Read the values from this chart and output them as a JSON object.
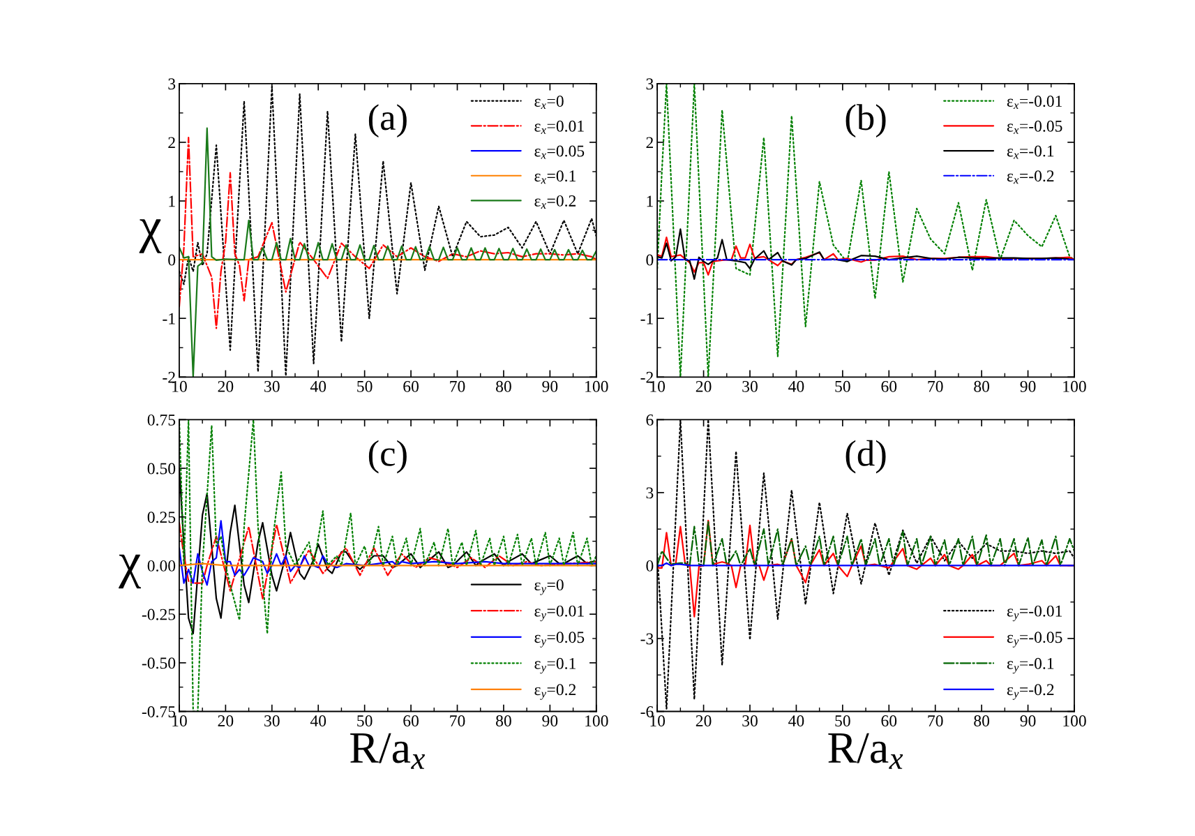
{
  "chart_data": [
    {
      "type": "line",
      "title": "(a)",
      "ylabel": "χ",
      "legend": "top right",
      "tick_labels": "xy",
      "xlim": [
        10,
        100
      ],
      "xticks": [
        10,
        {
          "value": 15,
          "label": null
        },
        20,
        {
          "value": 25,
          "label": null
        },
        30,
        {
          "value": 35,
          "label": null
        },
        40,
        {
          "value": 45,
          "label": null
        },
        50,
        {
          "value": 55,
          "label": null
        },
        60,
        {
          "value": 65,
          "label": null
        },
        70,
        {
          "value": 75,
          "label": null
        },
        80,
        {
          "value": 85,
          "label": null
        },
        90,
        {
          "value": 95,
          "label": null
        },
        100
      ],
      "ylim": [
        -2,
        3
      ],
      "yticks": [
        -2,
        {
          "value": -1.5,
          "label": null
        },
        -1,
        {
          "value": -0.5,
          "label": null
        },
        0,
        {
          "value": 0.5,
          "label": null
        },
        1,
        {
          "value": 1.5,
          "label": null
        },
        2,
        {
          "value": 2.5,
          "label": null
        },
        3
      ],
      "series": [
        {
          "name": "ε$_{x}$=0",
          "color": "#000000",
          "line_style": "dotted",
          "x": [
            10,
            11,
            12,
            13,
            14,
            15,
            16,
            18,
            21,
            24,
            27,
            30,
            33,
            36,
            39,
            42,
            45,
            48,
            51,
            54,
            57,
            60,
            63,
            66,
            69,
            72,
            75,
            78,
            81,
            84,
            87,
            90,
            93,
            96,
            99,
            100
          ],
          "values": [
            -0.2,
            -0.42,
            0.05,
            -0.2,
            0.29,
            -0.1,
            0.1,
            1.95,
            -1.54,
            2.7,
            -1.91,
            2.95,
            -1.98,
            2.82,
            -1.77,
            2.53,
            -1.4,
            2.14,
            -1.0,
            1.68,
            -0.58,
            1.31,
            -0.18,
            0.91,
            0.05,
            0.65,
            0.39,
            0.42,
            0.55,
            0.2,
            0.65,
            0.1,
            0.67,
            0.1,
            0.7,
            0.4
          ]
        },
        {
          "name": "ε$_{x}$=0.01",
          "color": "#ff0000",
          "line_style": "dashdot",
          "x": [
            10,
            11,
            12,
            13,
            15,
            17,
            18,
            19,
            20,
            21,
            22,
            23,
            24,
            25,
            27,
            30,
            33,
            36,
            39,
            42,
            45,
            48,
            51,
            54,
            57,
            60,
            63,
            66,
            69,
            72,
            75,
            78,
            81,
            84,
            87,
            90,
            93,
            96,
            99,
            100
          ],
          "values": [
            -0.8,
            0.2,
            2.08,
            0.05,
            0.1,
            -0.3,
            -1.17,
            -0.2,
            0.3,
            1.48,
            0.1,
            -0.1,
            -0.7,
            0.0,
            0.05,
            0.63,
            -0.55,
            0.3,
            0.0,
            -0.32,
            0.28,
            0.05,
            -0.15,
            0.25,
            0.05,
            0.2,
            0.05,
            -0.03,
            0.1,
            0.05,
            0.15,
            0.1,
            0.12,
            0.05,
            0.1,
            0.1,
            0.08,
            0.1,
            0.05,
            0.0
          ]
        },
        {
          "name": "ε$_{x}$=0.05",
          "color": "#0000ff",
          "line_style": "solid"
        },
        {
          "name": "ε$_{x}$=0.1",
          "color": "#ff8000",
          "line_style": "solid",
          "x": [
            10,
            100
          ],
          "values": [
            0.0,
            0.0
          ]
        },
        {
          "name": "ε$_{x}$=0.2",
          "color": "#1a7a1a",
          "line_style": "solid",
          "x": [
            10,
            11,
            12,
            13,
            14,
            15,
            16,
            17,
            18,
            20,
            23,
            24,
            25,
            26,
            27,
            28,
            29,
            30,
            31,
            32,
            33,
            34,
            35,
            36,
            37,
            38,
            39,
            40,
            41,
            42,
            43,
            44,
            45,
            46,
            47,
            48,
            49,
            50,
            51,
            52,
            53,
            54,
            55,
            56,
            57,
            58,
            59,
            60,
            61,
            62,
            63,
            64,
            65,
            66,
            67,
            68,
            69,
            70,
            71,
            72,
            73,
            74,
            75,
            76,
            77,
            78,
            79,
            80,
            81,
            82,
            83,
            84,
            85,
            86,
            87,
            88,
            89,
            90,
            91,
            92,
            93,
            94,
            95,
            96,
            97,
            98,
            99,
            100
          ],
          "values": [
            0.21,
            0.03,
            0.05,
            -2.0,
            -0.11,
            -0.05,
            2.24,
            0.05,
            -0.01,
            0.01,
            0.0,
            0.0,
            0.67,
            0.0,
            0.0,
            0.2,
            0.0,
            0.0,
            0.29,
            0.0,
            0.0,
            0.36,
            0.0,
            0.0,
            0.27,
            0.0,
            0.0,
            0.29,
            0.0,
            0.0,
            0.27,
            0.0,
            0.0,
            0.25,
            0.0,
            0.0,
            0.25,
            0.0,
            0.0,
            0.24,
            0.0,
            0.0,
            0.23,
            0.0,
            0.0,
            0.23,
            0.0,
            0.0,
            0.22,
            0.0,
            0.0,
            0.22,
            0.0,
            0.0,
            0.21,
            0.0,
            0.0,
            0.2,
            0.0,
            0.0,
            0.2,
            0.0,
            0.0,
            0.2,
            0.0,
            0.0,
            0.19,
            0.0,
            0.0,
            0.19,
            0.0,
            0.0,
            0.18,
            0.0,
            0.0,
            0.18,
            0.0,
            0.0,
            0.17,
            0.0,
            0.0,
            0.17,
            0.0,
            0.0,
            0.16,
            0.0,
            0.0,
            0.15
          ]
        }
      ]
    },
    {
      "type": "line",
      "title": "(b)",
      "legend": "top right",
      "xlim": [
        10,
        100
      ],
      "xticks": [
        10,
        {
          "value": 15,
          "label": null
        },
        20,
        {
          "value": 25,
          "label": null
        },
        30,
        {
          "value": 35,
          "label": null
        },
        40,
        {
          "value": 45,
          "label": null
        },
        50,
        {
          "value": 55,
          "label": null
        },
        60,
        {
          "value": 65,
          "label": null
        },
        70,
        {
          "value": 75,
          "label": null
        },
        80,
        {
          "value": 85,
          "label": null
        },
        90,
        {
          "value": 95,
          "label": null
        },
        100
      ],
      "ylim": [
        -2,
        3
      ],
      "yticks": [
        -2,
        {
          "value": -1.5,
          "label": null
        },
        -1,
        {
          "value": -0.5,
          "label": null
        },
        0,
        {
          "value": 0.5,
          "label": null
        },
        1,
        {
          "value": 1.5,
          "label": null
        },
        2,
        {
          "value": 2.5,
          "label": null
        },
        3
      ],
      "series": [
        {
          "name": "ε$_{x}$=-0.01",
          "color": "#008000",
          "line_style": "dotted",
          "x": [
            10,
            11,
            12,
            15,
            18,
            21,
            24,
            27,
            30,
            33,
            36,
            39,
            42,
            45,
            48,
            51,
            54,
            57,
            60,
            63,
            66,
            69,
            72,
            75,
            78,
            81,
            84,
            87,
            90,
            93,
            96,
            99,
            100
          ],
          "values": [
            -0.15,
            1.5,
            3.0,
            -2.0,
            3.0,
            -2.0,
            2.55,
            -0.15,
            -0.26,
            2.08,
            -1.65,
            2.45,
            -1.14,
            1.33,
            0.25,
            -0.05,
            1.35,
            -0.66,
            1.5,
            -0.38,
            0.87,
            0.35,
            0.1,
            0.97,
            -0.18,
            1.02,
            0.0,
            0.67,
            0.41,
            0.22,
            0.75,
            0.05,
            0.0
          ]
        },
        {
          "name": "ε$_{x}$=-0.05",
          "color": "#ff0000",
          "line_style": "solid",
          "x": [
            10,
            11,
            12,
            13,
            15,
            17,
            18,
            19,
            20,
            21,
            22,
            24,
            26,
            27,
            28,
            29,
            30,
            31,
            33,
            34,
            36,
            37,
            39,
            40,
            42,
            45,
            46,
            48,
            49,
            51,
            54,
            55,
            57,
            60,
            63,
            66,
            69,
            72,
            75,
            78,
            81,
            84,
            87,
            90,
            93,
            96,
            99,
            100
          ],
          "values": [
            0.08,
            0.06,
            0.38,
            0.05,
            0.08,
            -0.05,
            -0.21,
            -0.05,
            -0.05,
            -0.26,
            -0.03,
            -0.01,
            0.0,
            0.23,
            0.03,
            0.03,
            0.26,
            0.03,
            0.05,
            0.0,
            -0.1,
            -0.02,
            -0.08,
            0.0,
            0.04,
            0.12,
            0.0,
            0.1,
            0.0,
            0.02,
            -0.04,
            -0.01,
            -0.01,
            0.05,
            0.06,
            0.0,
            0.02,
            0.02,
            0.04,
            0.05,
            0.05,
            0.02,
            0.02,
            0.02,
            0.02,
            0.03,
            0.04,
            0.0
          ]
        },
        {
          "name": "ε$_{x}$=-0.1",
          "color": "#000000",
          "line_style": "solid",
          "x": [
            10,
            11,
            12,
            13,
            14,
            15,
            16,
            17,
            18,
            19,
            20,
            21,
            22,
            23,
            24,
            25,
            27,
            29,
            30,
            31,
            33,
            34,
            36,
            37,
            39,
            40,
            42,
            45,
            46,
            48,
            51,
            54,
            57,
            60,
            63,
            66,
            69,
            72,
            75,
            78,
            81,
            84,
            87,
            90,
            93,
            96,
            99,
            100
          ],
          "values": [
            0.05,
            0.03,
            0.28,
            -0.02,
            0.05,
            0.52,
            0.0,
            -0.02,
            -0.33,
            0.04,
            -0.03,
            -0.08,
            -0.02,
            0.03,
            0.34,
            0.0,
            -0.02,
            -0.05,
            -0.15,
            0.01,
            0.15,
            0.0,
            0.12,
            -0.02,
            -0.09,
            0.0,
            0.02,
            0.13,
            0.0,
            0.01,
            -0.03,
            0.07,
            0.06,
            0.0,
            0.03,
            0.06,
            0.02,
            0.01,
            0.04,
            0.03,
            0.02,
            0.03,
            0.03,
            0.02,
            0.02,
            0.03,
            0.01,
            0.0
          ]
        },
        {
          "name": "ε$_{x}$=-0.2",
          "color": "#0000ff",
          "line_style": "dashdot",
          "x": [
            10,
            100
          ],
          "values": [
            0.0,
            0.0
          ]
        }
      ]
    },
    {
      "type": "line",
      "title": "(c)",
      "ylabel": "χ",
      "xlabel": "R/a$_{x}$",
      "legend": "bottom right",
      "xlim": [
        10,
        100
      ],
      "xticks": [
        10,
        {
          "value": 15,
          "label": null
        },
        20,
        {
          "value": 25,
          "label": null
        },
        30,
        {
          "value": 35,
          "label": null
        },
        40,
        {
          "value": 45,
          "label": null
        },
        50,
        {
          "value": 55,
          "label": null
        },
        60,
        {
          "value": 65,
          "label": null
        },
        70,
        {
          "value": 75,
          "label": null
        },
        80,
        {
          "value": 85,
          "label": null
        },
        90,
        {
          "value": 95,
          "label": null
        },
        100
      ],
      "ylim": [
        -0.75,
        0.75
      ],
      "yticks": [
        {
          "value": -0.75,
          "label": "-0.75"
        },
        {
          "value": -0.625,
          "label": null
        },
        {
          "value": -0.5,
          "label": "-0.50"
        },
        {
          "value": -0.375,
          "label": null
        },
        {
          "value": -0.25,
          "label": "-0.25"
        },
        {
          "value": -0.125,
          "label": null
        },
        {
          "value": 0,
          "label": "0.00"
        },
        {
          "value": 0.125,
          "label": null
        },
        {
          "value": 0.25,
          "label": "0.25"
        },
        {
          "value": 0.375,
          "label": null
        },
        {
          "value": 0.5,
          "label": "0.50"
        },
        {
          "value": 0.625,
          "label": null
        },
        {
          "value": 0.75,
          "label": "0.75"
        }
      ],
      "series": [
        {
          "name": "ε$_{y}$=0",
          "color": "#000000",
          "line_style": "solid",
          "x": [
            10,
            12,
            13,
            15,
            16,
            18,
            19,
            21,
            22,
            24,
            25,
            27,
            28,
            30,
            31,
            33,
            34,
            36,
            37,
            39,
            40,
            42,
            43,
            45,
            46,
            48,
            49,
            52,
            54,
            56,
            57,
            60,
            62,
            63,
            66,
            68,
            69,
            72,
            74,
            75,
            78,
            80,
            81,
            84,
            86,
            87,
            90,
            92,
            93,
            96,
            98,
            99,
            100
          ],
          "values": [
            0.5,
            -0.27,
            -0.35,
            0.26,
            0.37,
            -0.17,
            -0.27,
            0.17,
            0.31,
            -0.1,
            -0.19,
            0.12,
            0.22,
            -0.05,
            -0.13,
            0.05,
            0.17,
            -0.04,
            -0.07,
            0.03,
            0.11,
            -0.02,
            -0.04,
            0.07,
            0.07,
            0.0,
            -0.02,
            0.05,
            0.05,
            -0.01,
            0.0,
            0.06,
            -0.01,
            0.01,
            0.07,
            -0.01,
            0.0,
            0.07,
            0.0,
            0.02,
            0.06,
            0.0,
            0.02,
            0.06,
            0.01,
            0.02,
            0.05,
            0.01,
            0.01,
            0.05,
            0.01,
            0.02,
            0.02
          ]
        },
        {
          "name": "ε$_{y}$=0.01",
          "color": "#ff0000",
          "line_style": "dashdot",
          "x": [
            10,
            11,
            12,
            13,
            15,
            16,
            18,
            21,
            25,
            28,
            31,
            34,
            38,
            41,
            46,
            49,
            52,
            55,
            58,
            61,
            64,
            67,
            70,
            73,
            76,
            79,
            82,
            85,
            88,
            100
          ],
          "values": [
            0.22,
            0.05,
            -0.08,
            -0.09,
            -0.09,
            0.0,
            0.15,
            -0.13,
            0.2,
            -0.17,
            0.21,
            -0.09,
            0.08,
            -0.04,
            0.09,
            -0.05,
            0.09,
            -0.05,
            0.06,
            -0.01,
            0.04,
            0.02,
            -0.01,
            0.04,
            -0.01,
            0.05,
            0.0,
            0.02,
            0.0,
            0.02
          ]
        },
        {
          "name": "ε$_{y}$=0.05",
          "color": "#0000ff",
          "line_style": "solid",
          "x": [
            10,
            11,
            12,
            13,
            14,
            15,
            16,
            17,
            18,
            19,
            20,
            21,
            22,
            23,
            24,
            25,
            26,
            27,
            28,
            29,
            30,
            31,
            32,
            33,
            34,
            35,
            36,
            37,
            38,
            39,
            40,
            41,
            42,
            44,
            46,
            50,
            56,
            57,
            58,
            60,
            65,
            70,
            76,
            80,
            100
          ],
          "values": [
            0.09,
            -0.09,
            -0.02,
            -0.09,
            0.06,
            -0.03,
            -0.1,
            0.02,
            0.04,
            0.23,
            0.02,
            0.02,
            -0.05,
            -0.02,
            -0.05,
            -0.01,
            0.04,
            0.03,
            0.02,
            -0.04,
            0.0,
            0.06,
            0.0,
            0.05,
            -0.03,
            0.0,
            -0.01,
            0.05,
            0.0,
            0.0,
            -0.01,
            0.05,
            0.01,
            -0.01,
            0.01,
            0.0,
            0.02,
            0.0,
            0.02,
            0.01,
            0.02,
            0.01,
            0.02,
            0.01,
            0.01
          ]
        },
        {
          "name": "ε$_{y}$=0.1",
          "color": "#008000",
          "line_style": "dotted",
          "x": [
            10,
            11,
            12,
            13,
            14,
            15,
            17,
            18,
            19,
            20,
            21,
            23,
            24,
            26,
            27,
            29,
            30,
            32,
            33,
            35,
            38,
            39,
            41,
            42,
            44,
            45,
            47,
            48,
            50,
            51,
            53,
            54,
            56,
            57,
            59,
            60,
            62,
            63,
            65,
            66,
            68,
            69,
            71,
            72,
            74,
            75,
            77,
            78,
            80,
            81,
            83,
            84,
            86,
            87,
            89,
            90,
            92,
            93,
            95,
            96,
            98,
            99,
            100
          ],
          "values": [
            0.75,
            0.0,
            0.75,
            -0.75,
            -0.75,
            0.0,
            0.72,
            0.1,
            0.15,
            0.0,
            -0.1,
            -0.28,
            0.2,
            0.75,
            0.2,
            -0.35,
            0.1,
            0.48,
            0.1,
            0.0,
            0.12,
            0.0,
            0.28,
            0.0,
            0.05,
            0.0,
            0.27,
            0.0,
            0.1,
            0.0,
            0.2,
            0.0,
            0.15,
            0.0,
            0.14,
            0.0,
            0.19,
            0.0,
            0.12,
            0.0,
            0.19,
            0.0,
            0.12,
            0.0,
            0.18,
            0.0,
            0.14,
            0.0,
            0.15,
            0.0,
            0.16,
            0.0,
            0.14,
            0.0,
            0.17,
            0.0,
            0.14,
            0.0,
            0.17,
            0.0,
            0.14,
            0.0,
            0.05
          ]
        },
        {
          "name": "ε$_{y}$=0.2",
          "color": "#ff8000",
          "line_style": "solid",
          "x": [
            10,
            15,
            20,
            100
          ],
          "values": [
            0.0,
            0.01,
            0.0,
            0.0
          ]
        }
      ]
    },
    {
      "type": "line",
      "title": "(d)",
      "xlabel": "R/a$_{x}$",
      "legend": "bottom right",
      "xlim": [
        10,
        100
      ],
      "xticks": [
        10,
        {
          "value": 15,
          "label": null
        },
        20,
        {
          "value": 25,
          "label": null
        },
        30,
        {
          "value": 35,
          "label": null
        },
        40,
        {
          "value": 45,
          "label": null
        },
        50,
        {
          "value": 55,
          "label": null
        },
        60,
        {
          "value": 65,
          "label": null
        },
        70,
        {
          "value": 75,
          "label": null
        },
        80,
        {
          "value": 85,
          "label": null
        },
        90,
        {
          "value": 95,
          "label": null
        },
        100
      ],
      "ylim": [
        -6,
        6
      ],
      "yticks": [
        -6,
        {
          "value": -4.5,
          "label": null
        },
        -3,
        {
          "value": -1.5,
          "label": null
        },
        0,
        {
          "value": 1.5,
          "label": null
        },
        3,
        {
          "value": 4.5,
          "label": null
        },
        6
      ],
      "series": [
        {
          "name": "ε$_{y}$=-0.01",
          "color": "#000000",
          "line_style": "dotted",
          "x": [
            10,
            12,
            15,
            18,
            21,
            24,
            27,
            30,
            33,
            36,
            39,
            42,
            45,
            48,
            51,
            54,
            57,
            60,
            63,
            66,
            69,
            72,
            75,
            78,
            81,
            84,
            87,
            90,
            93,
            96,
            99,
            100
          ],
          "values": [
            0.5,
            -5.9,
            6.0,
            -5.5,
            6.0,
            -4.1,
            4.7,
            -3.05,
            3.8,
            -2.2,
            3.1,
            -1.6,
            2.6,
            -1.15,
            2.15,
            -0.75,
            1.75,
            -0.4,
            1.45,
            0.1,
            1.2,
            0.2,
            1.0,
            0.3,
            0.9,
            0.6,
            0.6,
            0.5,
            0.6,
            0.5,
            0.6,
            0.3
          ]
        },
        {
          "name": "ε$_{y}$=-0.05",
          "color": "#ff0000",
          "line_style": "solid",
          "x": [
            10,
            11,
            12,
            13,
            14,
            15,
            16,
            17,
            18,
            19,
            20,
            21,
            22,
            23,
            24,
            25,
            26,
            27,
            28,
            29,
            30,
            31,
            32,
            33,
            34,
            36,
            37,
            39,
            40,
            42,
            43,
            45,
            46,
            48,
            49,
            51,
            52,
            54,
            55,
            57,
            60,
            63,
            64,
            66,
            67,
            69,
            70,
            72,
            73,
            75,
            76,
            78,
            79,
            81,
            82,
            84,
            87,
            88,
            90,
            93,
            94,
            96,
            97,
            100
          ],
          "values": [
            -0.1,
            -0.1,
            1.35,
            0.0,
            0.1,
            1.6,
            0.1,
            0.0,
            -2.1,
            -0.05,
            0.0,
            1.85,
            0.05,
            0.1,
            0.15,
            0.1,
            0.0,
            -0.9,
            0.0,
            0.0,
            1.65,
            0.0,
            0.0,
            -0.6,
            0.0,
            0.05,
            0.0,
            1.1,
            0.0,
            -0.7,
            0.0,
            0.65,
            0.0,
            0.5,
            0.0,
            -0.45,
            0.0,
            0.8,
            0.0,
            0.05,
            -0.1,
            0.7,
            0.0,
            -0.15,
            0.0,
            0.3,
            0.0,
            0.45,
            0.0,
            -0.15,
            0.0,
            0.45,
            0.0,
            0.2,
            0.0,
            0.0,
            0.5,
            0.0,
            0.05,
            0.2,
            0.0,
            0.4,
            0.0,
            0.0
          ]
        },
        {
          "name": "ε$_{y}$=-0.1",
          "color": "#006400",
          "line_style": "dashdot",
          "x": [
            10,
            11,
            12,
            13,
            15,
            16,
            17,
            18,
            19,
            20,
            21,
            22,
            24,
            25,
            27,
            28,
            30,
            31,
            33,
            34,
            36,
            37,
            39,
            40,
            42,
            43,
            45,
            46,
            48,
            49,
            51,
            52,
            54,
            55,
            57,
            58,
            60,
            61,
            63,
            64,
            66,
            67,
            69,
            70,
            72,
            73,
            75,
            76,
            78,
            79,
            81,
            82,
            84,
            85,
            87,
            88,
            90,
            91,
            93,
            94,
            96,
            97,
            99,
            100
          ],
          "values": [
            0.0,
            0.6,
            0.3,
            0.05,
            0.1,
            0.1,
            0.0,
            1.6,
            0.05,
            0.0,
            1.8,
            0.0,
            1.1,
            0.0,
            0.6,
            0.0,
            0.7,
            0.0,
            1.5,
            0.0,
            1.5,
            0.0,
            1.1,
            0.0,
            0.8,
            0.0,
            1.2,
            0.0,
            1.2,
            0.0,
            1.2,
            0.0,
            1.1,
            0.0,
            1.1,
            0.0,
            1.1,
            0.0,
            1.4,
            0.0,
            1.1,
            0.0,
            1.2,
            0.0,
            1.05,
            0.0,
            1.1,
            0.0,
            1.2,
            0.0,
            1.25,
            0.0,
            1.1,
            0.0,
            1.1,
            0.0,
            1.15,
            0.0,
            1.05,
            0.0,
            1.2,
            0.0,
            1.1,
            0.6
          ]
        },
        {
          "name": "ε$_{y}$=-0.2",
          "color": "#0000ff",
          "line_style": "solid",
          "x": [
            10,
            11,
            12,
            13,
            14,
            15,
            17,
            100
          ],
          "values": [
            0.0,
            0.0,
            0.1,
            0.0,
            0.05,
            0.05,
            0.0,
            0.0
          ]
        }
      ]
    }
  ]
}
